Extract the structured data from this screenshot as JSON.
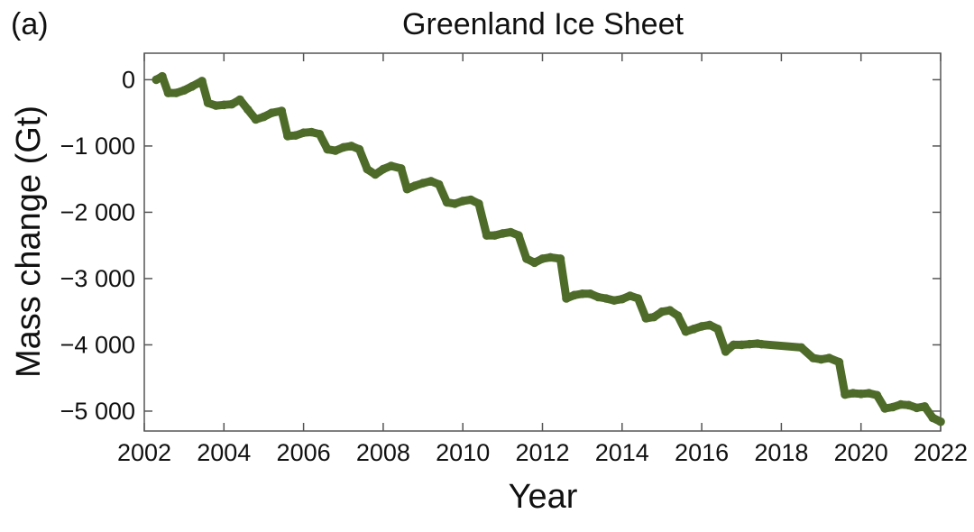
{
  "panel_label": "(a)",
  "chart_data": {
    "type": "line",
    "title": "Greenland Ice Sheet",
    "xlabel": "Year",
    "ylabel": "Mass change (Gt)",
    "xlim": [
      2002,
      2022
    ],
    "ylim": [
      -5300,
      400
    ],
    "x_ticks": [
      2002,
      2004,
      2006,
      2008,
      2010,
      2012,
      2014,
      2016,
      2018,
      2020,
      2022
    ],
    "x_tick_labels": [
      "2002",
      "2004",
      "2006",
      "2008",
      "2010",
      "2012",
      "2014",
      "2016",
      "2018",
      "2020",
      "2022"
    ],
    "y_ticks": [
      0,
      -1000,
      -2000,
      -3000,
      -4000,
      -5000
    ],
    "y_tick_labels": [
      "0",
      "−1 000",
      "−2 000",
      "−3 000",
      "−4 000",
      "−5 000"
    ],
    "grid": false,
    "legend": "none",
    "colors": {
      "series": "#4e6b2a",
      "frame": "#555555",
      "text": "#111111"
    },
    "series": [
      {
        "x": [
          2002.3,
          2002.45,
          2002.6,
          2002.8,
          2003.0,
          2003.2,
          2003.45,
          2003.6,
          2003.8,
          2004.0,
          2004.2,
          2004.4,
          2004.6,
          2004.8,
          2005.0,
          2005.2,
          2005.45,
          2005.6,
          2005.8,
          2006.0,
          2006.2,
          2006.4,
          2006.6,
          2006.8,
          2007.0,
          2007.2,
          2007.4,
          2007.6,
          2007.8,
          2008.0,
          2008.2,
          2008.45,
          2008.6,
          2008.8,
          2009.0,
          2009.2,
          2009.4,
          2009.6,
          2009.8,
          2010.0,
          2010.2,
          2010.4,
          2010.6,
          2010.8,
          2011.0,
          2011.2,
          2011.4,
          2011.6,
          2011.8,
          2012.0,
          2012.2,
          2012.45,
          2012.6,
          2012.8,
          2013.0,
          2013.2,
          2013.4,
          2013.6,
          2013.8,
          2014.0,
          2014.2,
          2014.4,
          2014.6,
          2014.8,
          2015.0,
          2015.2,
          2015.4,
          2015.6,
          2015.8,
          2016.0,
          2016.2,
          2016.4,
          2016.6,
          2016.8,
          2017.0,
          2017.2,
          2017.4,
          2017.5,
          2018.5,
          2018.8,
          2019.0,
          2019.2,
          2019.45,
          2019.6,
          2019.8,
          2020.0,
          2020.2,
          2020.4,
          2020.6,
          2020.8,
          2021.0,
          2021.2,
          2021.4,
          2021.6,
          2021.8,
          2022.0
        ],
        "y": [
          0,
          50,
          -200,
          -200,
          -160,
          -100,
          -20,
          -350,
          -390,
          -380,
          -370,
          -300,
          -450,
          -600,
          -560,
          -500,
          -470,
          -850,
          -840,
          -800,
          -790,
          -820,
          -1050,
          -1070,
          -1020,
          -1000,
          -1050,
          -1350,
          -1430,
          -1350,
          -1300,
          -1340,
          -1650,
          -1600,
          -1560,
          -1530,
          -1580,
          -1850,
          -1870,
          -1830,
          -1810,
          -1870,
          -2350,
          -2350,
          -2320,
          -2300,
          -2350,
          -2700,
          -2760,
          -2700,
          -2680,
          -2700,
          -3300,
          -3250,
          -3230,
          -3230,
          -3280,
          -3300,
          -3330,
          -3310,
          -3260,
          -3300,
          -3600,
          -3580,
          -3500,
          -3480,
          -3560,
          -3800,
          -3760,
          -3720,
          -3700,
          -3760,
          -4100,
          -4000,
          -4000,
          -3990,
          -3980,
          -3990,
          -4040,
          -4200,
          -4220,
          -4200,
          -4260,
          -4750,
          -4730,
          -4740,
          -4730,
          -4760,
          -4960,
          -4940,
          -4900,
          -4910,
          -4950,
          -4930,
          -5100,
          -5160
        ]
      }
    ]
  }
}
